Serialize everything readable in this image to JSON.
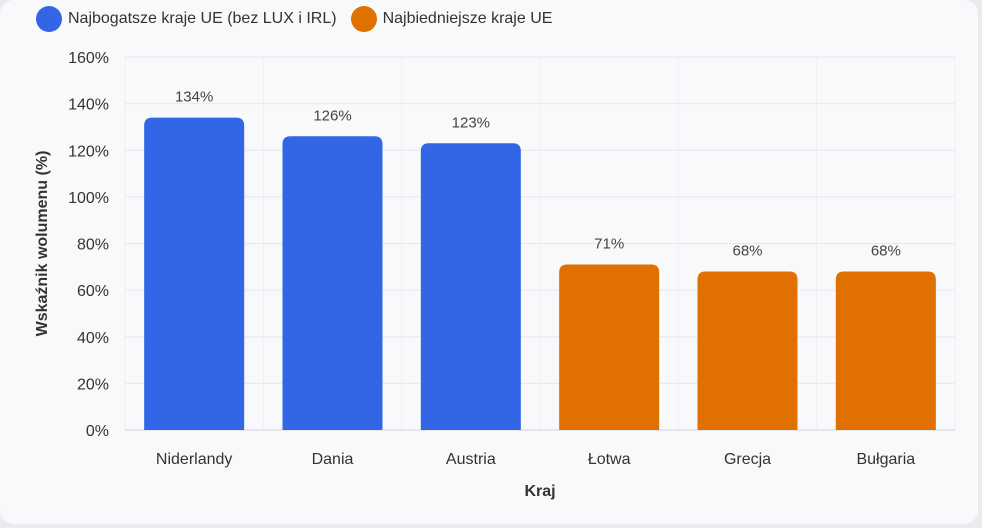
{
  "chart_data": {
    "type": "bar",
    "categories": [
      "Niderlandy",
      "Dania",
      "Austria",
      "Łotwa",
      "Grecja",
      "Bułgaria"
    ],
    "values": [
      134,
      126,
      123,
      71,
      68,
      68
    ],
    "value_labels": [
      "134%",
      "126%",
      "123%",
      "71%",
      "68%",
      "68%"
    ],
    "groups": [
      0,
      0,
      0,
      1,
      1,
      1
    ],
    "legend": [
      {
        "name": "Najbogatsze kraje UE (bez LUX i IRL)",
        "color": "#3366e6"
      },
      {
        "name": "Najbiedniejsze kraje UE",
        "color": "#e07000"
      }
    ],
    "xlabel": "Kraj",
    "ylabel": "Wskaźnik wolumenu (%)",
    "ylim": [
      0,
      160
    ],
    "yticks": [
      0,
      20,
      40,
      60,
      80,
      100,
      120,
      140,
      160
    ],
    "ytick_labels": [
      "0%",
      "20%",
      "40%",
      "60%",
      "80%",
      "100%",
      "120%",
      "140%",
      "160%"
    ],
    "grid": true,
    "legend_position": "top-left"
  }
}
